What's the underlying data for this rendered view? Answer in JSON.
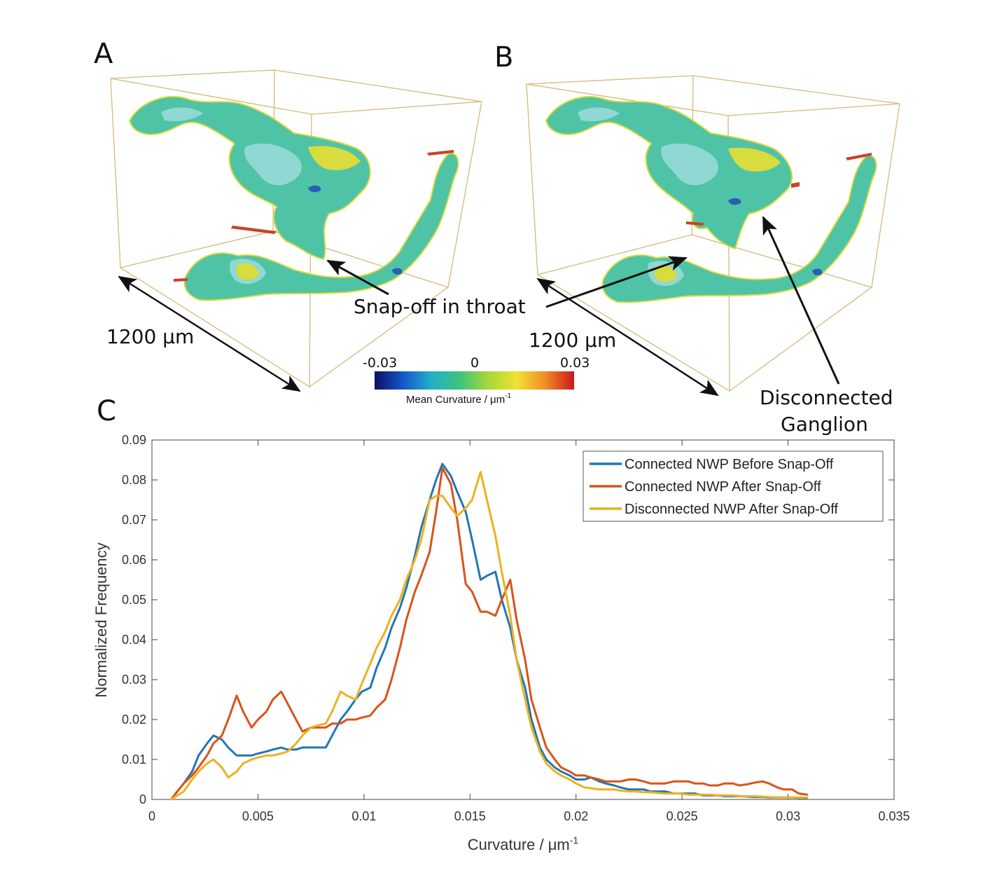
{
  "panels": {
    "a_letter": "A",
    "b_letter": "B",
    "c_letter": "C"
  },
  "annotations": {
    "snap_off": "Snap-off in throat",
    "scale_a": "1200 μm",
    "scale_b": "1200 μm",
    "ganglion_line1": "Disconnected",
    "ganglion_line2": "Ganglion"
  },
  "colorbar": {
    "min_label": "-0.03",
    "mid_label": "0",
    "max_label": "0.03",
    "title": "Mean Curvature / μm",
    "title_sup": "-1",
    "colors": [
      "#0b1163",
      "#1457c9",
      "#23b0c9",
      "#3cc57b",
      "#a9d73a",
      "#f2e135",
      "#f28a26",
      "#c8171e"
    ]
  },
  "render_colors": {
    "frame": "#d4b97a",
    "surface_base": "#4fc3a6",
    "surface_light": "#8fd8d3",
    "surface_yellow": "#d8dc3c",
    "surface_red": "#c9412b",
    "surface_blue": "#2a5fb8"
  },
  "chart_data": {
    "type": "line",
    "xlabel": "Curvature / μm",
    "xlabel_sup": "-1",
    "ylabel": "Normalized Frequency",
    "xlim": [
      0,
      0.035
    ],
    "ylim": [
      0,
      0.09
    ],
    "xticks": [
      0,
      0.005,
      0.01,
      0.015,
      0.02,
      0.025,
      0.03,
      0.035
    ],
    "xtick_labels": [
      "0",
      "0.005",
      "0.01",
      "0.015",
      "0.02",
      "0.025",
      "0.03",
      "0.035"
    ],
    "yticks": [
      0,
      0.01,
      0.02,
      0.03,
      0.04,
      0.05,
      0.06,
      0.07,
      0.08,
      0.09
    ],
    "ytick_labels": [
      "0",
      "0.01",
      "0.02",
      "0.03",
      "0.04",
      "0.05",
      "0.06",
      "0.07",
      "0.08",
      "0.09"
    ],
    "grid": false,
    "legend_position": "top-right",
    "series": [
      {
        "name": "Connected NWP Before Snap-Off",
        "color": "#1f77b4",
        "x": [
          0.0009,
          0.0012,
          0.0015,
          0.0019,
          0.0022,
          0.0026,
          0.0029,
          0.0033,
          0.0036,
          0.004,
          0.0043,
          0.0047,
          0.005,
          0.0054,
          0.0057,
          0.0061,
          0.0064,
          0.0068,
          0.0071,
          0.0075,
          0.0078,
          0.0082,
          0.0085,
          0.0089,
          0.0092,
          0.0096,
          0.0099,
          0.0103,
          0.0106,
          0.011,
          0.0113,
          0.0117,
          0.012,
          0.0124,
          0.0127,
          0.0131,
          0.0134,
          0.0137,
          0.0141,
          0.0144,
          0.0148,
          0.0151,
          0.0155,
          0.0158,
          0.0162,
          0.0165,
          0.0169,
          0.0172,
          0.0176,
          0.0179,
          0.0183,
          0.0186,
          0.019,
          0.0193,
          0.0197,
          0.02,
          0.0204,
          0.0207,
          0.0211,
          0.0214,
          0.0218,
          0.0221,
          0.0225,
          0.0228,
          0.0232,
          0.0235,
          0.0239,
          0.0242,
          0.0246,
          0.0249,
          0.0253,
          0.0256,
          0.026,
          0.0263,
          0.0267,
          0.027,
          0.0274,
          0.0277,
          0.0281,
          0.0284,
          0.0288,
          0.0291,
          0.0295,
          0.0298,
          0.0302,
          0.0305,
          0.0309
        ],
        "values": [
          0.0,
          0.002,
          0.004,
          0.007,
          0.011,
          0.014,
          0.016,
          0.015,
          0.013,
          0.011,
          0.011,
          0.011,
          0.0115,
          0.012,
          0.0125,
          0.013,
          0.0125,
          0.0125,
          0.013,
          0.013,
          0.013,
          0.013,
          0.016,
          0.02,
          0.022,
          0.025,
          0.027,
          0.028,
          0.033,
          0.038,
          0.043,
          0.048,
          0.053,
          0.061,
          0.068,
          0.075,
          0.08,
          0.084,
          0.081,
          0.077,
          0.072,
          0.065,
          0.055,
          0.056,
          0.057,
          0.05,
          0.043,
          0.035,
          0.028,
          0.02,
          0.013,
          0.01,
          0.008,
          0.007,
          0.006,
          0.005,
          0.005,
          0.0055,
          0.0045,
          0.004,
          0.0035,
          0.003,
          0.0025,
          0.0025,
          0.0025,
          0.002,
          0.002,
          0.002,
          0.0015,
          0.0015,
          0.0015,
          0.0015,
          0.001,
          0.001,
          0.001,
          0.0008,
          0.0008,
          0.0008,
          0.0007,
          0.0006,
          0.0006,
          0.0005,
          0.0005,
          0.0005,
          0.0005,
          0.0004,
          0.0004
        ]
      },
      {
        "name": "Connected NWP After Snap-Off",
        "color": "#d95319",
        "x": [
          0.0009,
          0.0012,
          0.0015,
          0.0019,
          0.0022,
          0.0026,
          0.0029,
          0.0033,
          0.0036,
          0.004,
          0.0043,
          0.0047,
          0.005,
          0.0054,
          0.0057,
          0.0061,
          0.0064,
          0.0068,
          0.0071,
          0.0075,
          0.0078,
          0.0082,
          0.0085,
          0.0089,
          0.0092,
          0.0096,
          0.0099,
          0.0103,
          0.0106,
          0.011,
          0.0113,
          0.0117,
          0.012,
          0.0124,
          0.0127,
          0.0131,
          0.0134,
          0.0137,
          0.0141,
          0.0144,
          0.0148,
          0.0151,
          0.0155,
          0.0158,
          0.0162,
          0.0165,
          0.0169,
          0.0172,
          0.0176,
          0.0179,
          0.0183,
          0.0186,
          0.019,
          0.0193,
          0.0197,
          0.02,
          0.0204,
          0.0207,
          0.0211,
          0.0214,
          0.0218,
          0.0221,
          0.0225,
          0.0228,
          0.0232,
          0.0235,
          0.0239,
          0.0242,
          0.0246,
          0.0249,
          0.0253,
          0.0256,
          0.026,
          0.0263,
          0.0267,
          0.027,
          0.0274,
          0.0277,
          0.0281,
          0.0284,
          0.0288,
          0.0291,
          0.0295,
          0.0298,
          0.0302,
          0.0305,
          0.0309
        ],
        "values": [
          0.0,
          0.002,
          0.004,
          0.006,
          0.008,
          0.011,
          0.014,
          0.016,
          0.02,
          0.026,
          0.022,
          0.018,
          0.02,
          0.022,
          0.025,
          0.027,
          0.024,
          0.02,
          0.017,
          0.018,
          0.018,
          0.018,
          0.019,
          0.019,
          0.02,
          0.02,
          0.0205,
          0.021,
          0.023,
          0.025,
          0.03,
          0.038,
          0.045,
          0.052,
          0.056,
          0.062,
          0.072,
          0.083,
          0.079,
          0.07,
          0.054,
          0.052,
          0.047,
          0.047,
          0.046,
          0.05,
          0.055,
          0.045,
          0.035,
          0.025,
          0.018,
          0.013,
          0.01,
          0.008,
          0.007,
          0.006,
          0.006,
          0.0055,
          0.005,
          0.0045,
          0.0045,
          0.0045,
          0.005,
          0.005,
          0.0045,
          0.004,
          0.004,
          0.004,
          0.0045,
          0.0045,
          0.0045,
          0.004,
          0.004,
          0.0035,
          0.0035,
          0.004,
          0.004,
          0.0035,
          0.0038,
          0.0042,
          0.0045,
          0.004,
          0.003,
          0.0025,
          0.0025,
          0.0015,
          0.0012
        ]
      },
      {
        "name": "Disconnected NWP After Snap-Off",
        "color": "#edb120",
        "x": [
          0.0009,
          0.0012,
          0.0015,
          0.0019,
          0.0022,
          0.0026,
          0.0029,
          0.0033,
          0.0036,
          0.004,
          0.0043,
          0.0047,
          0.005,
          0.0054,
          0.0057,
          0.0061,
          0.0064,
          0.0068,
          0.0071,
          0.0075,
          0.0078,
          0.0082,
          0.0085,
          0.0089,
          0.0092,
          0.0096,
          0.0099,
          0.0103,
          0.0106,
          0.011,
          0.0113,
          0.0117,
          0.012,
          0.0124,
          0.0127,
          0.0131,
          0.0134,
          0.0137,
          0.0141,
          0.0144,
          0.0148,
          0.0151,
          0.0155,
          0.0158,
          0.0162,
          0.0165,
          0.0169,
          0.0172,
          0.0176,
          0.0179,
          0.0183,
          0.0186,
          0.019,
          0.0193,
          0.0197,
          0.02,
          0.0204,
          0.0207,
          0.0211,
          0.0214,
          0.0218,
          0.0221,
          0.0225,
          0.0228,
          0.0232,
          0.0235,
          0.0239,
          0.0242,
          0.0246,
          0.0249,
          0.0253,
          0.0256,
          0.026,
          0.0263,
          0.0267,
          0.027,
          0.0274,
          0.0277,
          0.0281,
          0.0284,
          0.0288,
          0.0291,
          0.0295,
          0.0298,
          0.0302,
          0.0305,
          0.0309
        ],
        "values": [
          0.0,
          0.001,
          0.002,
          0.005,
          0.007,
          0.009,
          0.01,
          0.008,
          0.0055,
          0.007,
          0.009,
          0.01,
          0.0105,
          0.011,
          0.011,
          0.0115,
          0.012,
          0.014,
          0.016,
          0.018,
          0.0185,
          0.019,
          0.022,
          0.027,
          0.026,
          0.025,
          0.029,
          0.034,
          0.038,
          0.042,
          0.046,
          0.05,
          0.055,
          0.06,
          0.065,
          0.075,
          0.076,
          0.076,
          0.073,
          0.071,
          0.073,
          0.075,
          0.082,
          0.075,
          0.066,
          0.057,
          0.046,
          0.035,
          0.025,
          0.018,
          0.012,
          0.009,
          0.007,
          0.006,
          0.005,
          0.004,
          0.003,
          0.0028,
          0.0025,
          0.0025,
          0.0025,
          0.0022,
          0.002,
          0.002,
          0.0018,
          0.0018,
          0.0016,
          0.0015,
          0.0015,
          0.0015,
          0.0012,
          0.0012,
          0.0012,
          0.0012,
          0.001,
          0.001,
          0.001,
          0.0008,
          0.0008,
          0.0008,
          0.0007,
          0.0006,
          0.0005,
          0.0005,
          0.0005,
          0.0005,
          0.0005
        ]
      }
    ]
  }
}
